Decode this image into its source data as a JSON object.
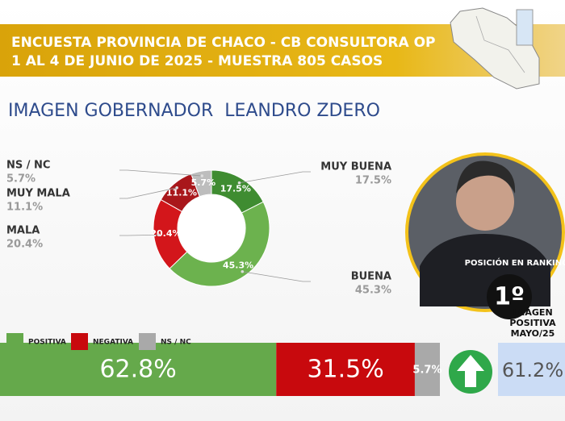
{
  "header": {
    "title_lines": [
      "ENCUESTA PROVINCIA DE CHACO - CB CONSULTORA OP",
      "1 AL 4 DE JUNIO DE 2025 - MUESTRA 805 CASOS"
    ]
  },
  "chart_data": [
    {
      "type": "pie",
      "donut": true,
      "title": "IMAGEN GOBERNADOR  LEANDRO ZDERO",
      "categories": [
        "MUY BUENA",
        "BUENA",
        "MALA",
        "MUY MALA",
        "NS / NC"
      ],
      "values": [
        17.5,
        45.3,
        20.4,
        11.1,
        5.7
      ],
      "value_labels": [
        "17.5%",
        "45.3%",
        "20.4%",
        "11.1%",
        "5.7%"
      ],
      "colors": [
        "#3f8c31",
        "#6cb24e",
        "#d3161b",
        "#a9171b",
        "#bdbdbd"
      ]
    },
    {
      "type": "bar",
      "orientation": "horizontal",
      "stacked": true,
      "categories": [
        null
      ],
      "xlim": [
        0,
        100
      ],
      "series": [
        {
          "name": "POSITIVA",
          "color": "#65a94b",
          "values": [
            62.8
          ],
          "value_labels": [
            "62.8%"
          ]
        },
        {
          "name": "NEGATIVA",
          "color": "#c8090d",
          "values": [
            31.5
          ],
          "value_labels": [
            "31.5%"
          ]
        },
        {
          "name": "NS / NC",
          "color": "#a9a9a9",
          "values": [
            5.7
          ],
          "value_labels": [
            "5.7%"
          ]
        }
      ]
    }
  ],
  "ranking": {
    "label": "POSICIÓN EN RANKING",
    "value": "1º"
  },
  "previous": {
    "label_lines": [
      "IMAGEN",
      "POSITIVA",
      "MAYO/25"
    ],
    "value": "61.2%"
  }
}
